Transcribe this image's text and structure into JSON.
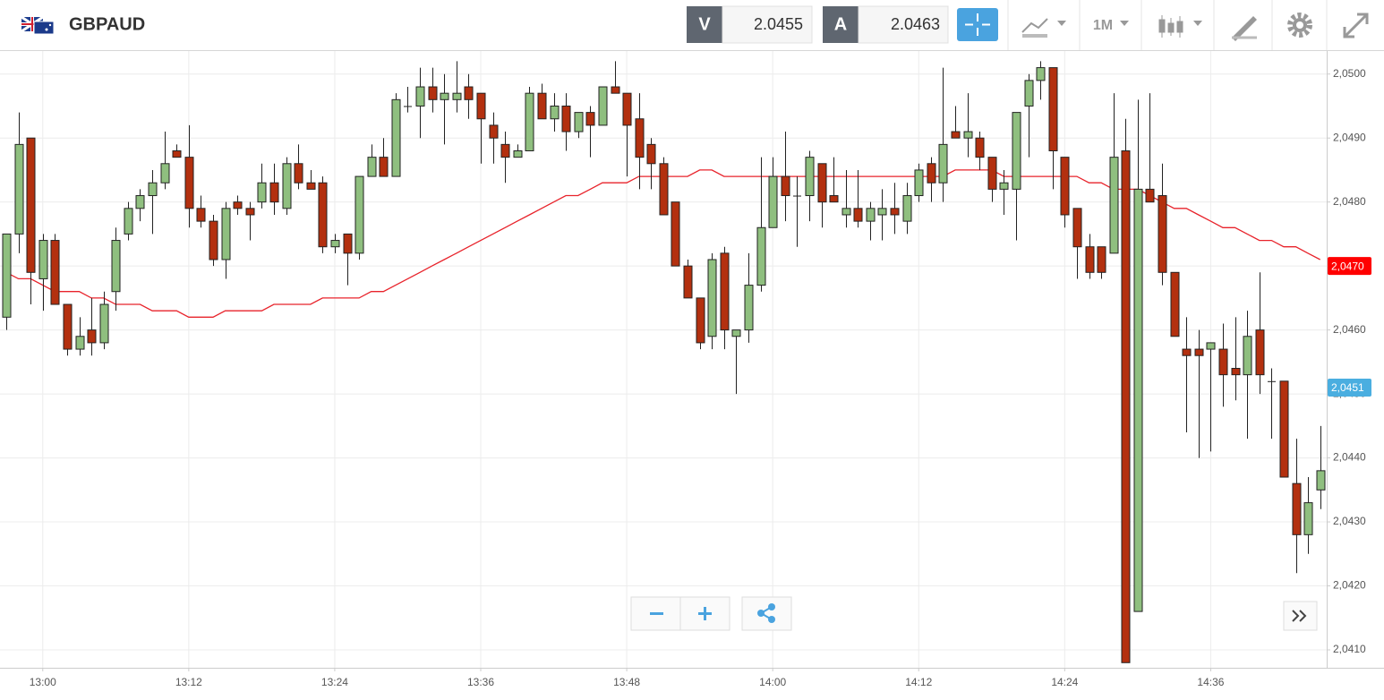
{
  "header": {
    "symbol": "GBPAUD",
    "bid_label": "V",
    "bid": 2.0455,
    "ask_label": "A",
    "ask": 2.0463,
    "timeframe": "1M"
  },
  "chart_data": {
    "type": "candlestick",
    "x": [
      "12:57",
      "12:58",
      "12:59",
      "13:00",
      "13:01",
      "13:02",
      "13:03",
      "13:04",
      "13:05",
      "13:06",
      "13:07",
      "13:08",
      "13:09",
      "13:10",
      "13:11",
      "13:12",
      "13:13",
      "13:14",
      "13:15",
      "13:16",
      "13:17",
      "13:18",
      "13:19",
      "13:20",
      "13:21",
      "13:22",
      "13:23",
      "13:24",
      "13:25",
      "13:26",
      "13:27",
      "13:28",
      "13:29",
      "13:30",
      "13:31",
      "13:32",
      "13:33",
      "13:34",
      "13:35",
      "13:36",
      "13:37",
      "13:38",
      "13:39",
      "13:40",
      "13:41",
      "13:42",
      "13:43",
      "13:44",
      "13:45",
      "13:46",
      "13:47",
      "13:48",
      "13:49",
      "13:50",
      "13:51",
      "13:52",
      "13:53",
      "13:54",
      "13:55",
      "13:56",
      "13:57",
      "13:58",
      "13:59",
      "14:00",
      "14:01",
      "14:02",
      "14:03",
      "14:04",
      "14:05",
      "14:06",
      "14:07",
      "14:08",
      "14:09",
      "14:10",
      "14:11",
      "14:12",
      "14:13",
      "14:14",
      "14:15",
      "14:16",
      "14:17",
      "14:18",
      "14:19",
      "14:20",
      "14:21",
      "14:22",
      "14:23",
      "14:24",
      "14:25",
      "14:26",
      "14:27",
      "14:28",
      "14:29",
      "14:30",
      "14:31",
      "14:32",
      "14:33",
      "14:34",
      "14:35",
      "14:36",
      "14:37",
      "14:38",
      "14:39",
      "14:40",
      "14:41",
      "14:42",
      "14:43",
      "14:44",
      "14:45"
    ],
    "open": [
      2.0462,
      2.0475,
      2.049,
      2.0468,
      2.0474,
      2.0464,
      2.0457,
      2.046,
      2.0458,
      2.0466,
      2.0475,
      2.0479,
      2.0481,
      2.0483,
      2.0488,
      2.0487,
      2.0479,
      2.0477,
      2.0471,
      2.048,
      2.0479,
      2.048,
      2.0483,
      2.0479,
      2.0486,
      2.0483,
      2.0483,
      2.0473,
      2.0475,
      2.0472,
      2.0484,
      2.0487,
      2.0484,
      2.0495,
      2.0495,
      2.0498,
      2.0496,
      2.0496,
      2.0498,
      2.0497,
      2.0492,
      2.0489,
      2.0487,
      2.0488,
      2.0497,
      2.0493,
      2.0495,
      2.0491,
      2.0494,
      2.0492,
      2.0498,
      2.0497,
      2.0493,
      2.0489,
      2.0486,
      2.048,
      2.047,
      2.0465,
      2.0459,
      2.0472,
      2.0459,
      2.046,
      2.0467,
      2.0476,
      2.0484,
      2.0481,
      2.0481,
      2.0486,
      2.0481,
      2.0478,
      2.0479,
      2.0477,
      2.0478,
      2.0479,
      2.0477,
      2.0481,
      2.0486,
      2.0483,
      2.0491,
      2.049,
      2.049,
      2.0487,
      2.0482,
      2.0482,
      2.0495,
      2.0499,
      2.0501,
      2.0487,
      2.0479,
      2.0473,
      2.0473,
      2.0472,
      2.0488,
      2.0416,
      2.0482,
      2.0481,
      2.0469,
      2.0457,
      2.0457,
      2.0457,
      2.0457,
      2.0454,
      2.0453,
      2.046,
      2.0452,
      2.0452,
      2.0436,
      2.0428,
      2.0435
    ],
    "high": [
      2.0475,
      2.0494,
      2.049,
      2.0475,
      2.0475,
      2.0464,
      2.0462,
      2.0465,
      2.0466,
      2.0476,
      2.048,
      2.0482,
      2.0485,
      2.0491,
      2.0489,
      2.0492,
      2.0481,
      2.0478,
      2.048,
      2.0481,
      2.048,
      2.0486,
      2.0486,
      2.0487,
      2.0489,
      2.0485,
      2.0484,
      2.0475,
      2.0475,
      2.0484,
      2.0489,
      2.049,
      2.0497,
      2.0498,
      2.0501,
      2.0501,
      2.05,
      2.0502,
      2.05,
      2.0497,
      2.0494,
      2.0491,
      2.0489,
      2.0498,
      2.04985,
      2.0497,
      2.0497,
      2.0494,
      2.0495,
      2.0498,
      2.0502,
      2.0497,
      2.0497,
      2.049,
      2.0487,
      2.048,
      2.0471,
      2.0465,
      2.0472,
      2.0473,
      2.046,
      2.0472,
      2.0487,
      2.0487,
      2.0491,
      2.0484,
      2.0488,
      2.0486,
      2.0487,
      2.0485,
      2.0485,
      2.048,
      2.0482,
      2.0483,
      2.0483,
      2.0486,
      2.0487,
      2.0501,
      2.0495,
      2.0497,
      2.0491,
      2.0487,
      2.0485,
      2.0494,
      2.05,
      2.0502,
      2.0501,
      2.0487,
      2.0479,
      2.0475,
      2.0473,
      2.0497,
      2.0493,
      2.0496,
      2.0497,
      2.0486,
      2.0469,
      2.0462,
      2.046,
      2.0458,
      2.0461,
      2.0462,
      2.0463,
      2.0469,
      2.0454,
      2.0452,
      2.0443,
      2.0437,
      2.0445
    ],
    "low": [
      2.046,
      2.0472,
      2.0464,
      2.0463,
      2.0464,
      2.0456,
      2.0456,
      2.0456,
      2.0457,
      2.0463,
      2.0474,
      2.0477,
      2.0475,
      2.0482,
      2.0487,
      2.0476,
      2.0476,
      2.047,
      2.0468,
      2.0478,
      2.0474,
      2.0479,
      2.0478,
      2.0478,
      2.0482,
      2.0482,
      2.0472,
      2.0472,
      2.0467,
      2.0471,
      2.0484,
      2.0484,
      2.0484,
      2.0494,
      2.049,
      2.0494,
      2.0489,
      2.0494,
      2.0493,
      2.0486,
      2.0486,
      2.0483,
      2.0487,
      2.0488,
      2.0493,
      2.0491,
      2.0488,
      2.049,
      2.0487,
      2.0492,
      2.0497,
      2.0484,
      2.0482,
      2.0482,
      2.0478,
      2.047,
      2.0465,
      2.0457,
      2.0457,
      2.0457,
      2.045,
      2.0458,
      2.0466,
      2.0476,
      2.0477,
      2.0473,
      2.0477,
      2.0476,
      2.048,
      2.0476,
      2.0476,
      2.0474,
      2.0474,
      2.0475,
      2.0475,
      2.048,
      2.048,
      2.048,
      2.049,
      2.0487,
      2.0485,
      2.048,
      2.0478,
      2.0474,
      2.0487,
      2.0496,
      2.0482,
      2.0476,
      2.0468,
      2.0468,
      2.0468,
      2.0472,
      2.0408,
      2.0416,
      2.048,
      2.0467,
      2.0459,
      2.0444,
      2.044,
      2.0441,
      2.0448,
      2.0449,
      2.0443,
      2.045,
      2.0443,
      2.0437,
      2.0422,
      2.0425,
      2.0432
    ],
    "close": [
      2.0475,
      2.0489,
      2.0469,
      2.0474,
      2.0464,
      2.0457,
      2.0459,
      2.0458,
      2.0464,
      2.0474,
      2.0479,
      2.0481,
      2.0483,
      2.0486,
      2.0487,
      2.0479,
      2.0477,
      2.0471,
      2.0479,
      2.0479,
      2.0478,
      2.0483,
      2.048,
      2.0486,
      2.0483,
      2.0482,
      2.0473,
      2.0474,
      2.0472,
      2.0484,
      2.0487,
      2.0484,
      2.0496,
      2.0495,
      2.0498,
      2.0496,
      2.0497,
      2.0497,
      2.0496,
      2.0493,
      2.049,
      2.0487,
      2.0488,
      2.0497,
      2.0493,
      2.0495,
      2.0491,
      2.0494,
      2.0492,
      2.0498,
      2.0497,
      2.0492,
      2.0487,
      2.0486,
      2.0478,
      2.047,
      2.0465,
      2.0458,
      2.0471,
      2.046,
      2.046,
      2.0467,
      2.0476,
      2.0484,
      2.0481,
      2.0481,
      2.0487,
      2.048,
      2.048,
      2.0479,
      2.0477,
      2.0479,
      2.0479,
      2.0478,
      2.0481,
      2.0485,
      2.0483,
      2.0489,
      2.049,
      2.0491,
      2.0487,
      2.0482,
      2.0483,
      2.0494,
      2.0499,
      2.0501,
      2.0488,
      2.0478,
      2.0473,
      2.0469,
      2.0469,
      2.0487,
      2.0408,
      2.0482,
      2.048,
      2.0469,
      2.0459,
      2.0456,
      2.0456,
      2.0458,
      2.0453,
      2.0453,
      2.0459,
      2.0453,
      2.0452,
      2.0437,
      2.0428,
      2.0433,
      2.0438
    ],
    "up_color": "#8fbf7f",
    "down_color": "#b3300f",
    "lines": [
      {
        "color": "#e8232b",
        "values": [
          2.0469,
          2.0468,
          2.0468,
          2.0467,
          2.0466,
          2.0466,
          2.0466,
          2.0465,
          2.0465,
          2.0464,
          2.0464,
          2.0464,
          2.0463,
          2.0463,
          2.0463,
          2.0462,
          2.0462,
          2.0462,
          2.0463,
          2.0463,
          2.0463,
          2.0463,
          2.0464,
          2.0464,
          2.0464,
          2.0464,
          2.0465,
          2.0465,
          2.0465,
          2.0465,
          2.0466,
          2.0466,
          2.0467,
          2.0468,
          2.0469,
          2.047,
          2.0471,
          2.0472,
          2.0473,
          2.0474,
          2.0475,
          2.0476,
          2.0477,
          2.0478,
          2.0479,
          2.048,
          2.0481,
          2.0481,
          2.0482,
          2.0483,
          2.0483,
          2.0483,
          2.0484,
          2.0484,
          2.0484,
          2.0484,
          2.0484,
          2.0485,
          2.0485,
          2.0484,
          2.0484,
          2.0484,
          2.0484,
          2.0484,
          2.0484,
          2.0484,
          2.0484,
          2.0484,
          2.0484,
          2.0484,
          2.0484,
          2.0484,
          2.0484,
          2.0484,
          2.0484,
          2.0484,
          2.0484,
          2.0484,
          2.0485,
          2.0485,
          2.0485,
          2.0485,
          2.0484,
          2.0484,
          2.0484,
          2.0484,
          2.0484,
          2.0484,
          2.0484,
          2.0483,
          2.0483,
          2.0482,
          2.0482,
          2.0482,
          2.0481,
          2.048,
          2.0479,
          2.0479,
          2.0478,
          2.0477,
          2.0476,
          2.0476,
          2.0475,
          2.0474,
          2.0474,
          2.0473,
          2.0473,
          2.0472,
          2.0471
        ]
      }
    ],
    "ylim": [
      2.04072,
      2.05036
    ],
    "yticks": [
      {
        "value": 2.041,
        "label": "2,0410"
      },
      {
        "value": 2.042,
        "label": "2,0420"
      },
      {
        "value": 2.043,
        "label": "2,0430"
      },
      {
        "value": 2.044,
        "label": "2,0440"
      },
      {
        "value": 2.045,
        "label": "2,0450"
      },
      {
        "value": 2.046,
        "label": "2,0460"
      },
      {
        "value": 2.047,
        "label": "2,0470"
      },
      {
        "value": 2.048,
        "label": "2,0480"
      },
      {
        "value": 2.049,
        "label": "2,0490"
      },
      {
        "value": 2.05,
        "label": "2,0500"
      }
    ],
    "xticks": [
      "13:00",
      "13:12",
      "13:24",
      "13:36",
      "13:48",
      "14:00",
      "14:12",
      "14:24",
      "14:36"
    ],
    "grid": true,
    "price_tags": [
      {
        "value": 2.047,
        "label": "2,0470",
        "color": "#ff0000"
      },
      {
        "value": 2.0451,
        "label": "2,0451",
        "color": "#4aaee0"
      }
    ]
  }
}
